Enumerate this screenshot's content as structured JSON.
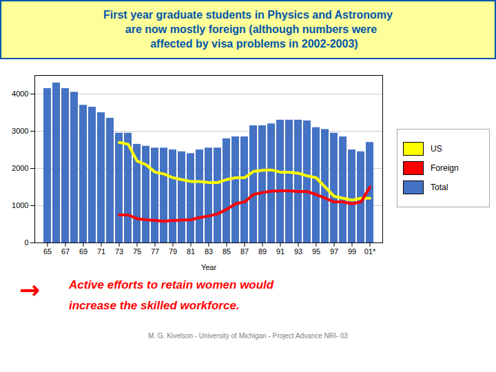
{
  "chart_data": {
    "type": "bar",
    "title": "First year graduate students in Physics and Astronomy\n  are now mostly foreign (although numbers were\n    affected by visa problems in 2002-2003)",
    "xlabel": "Year",
    "categories": [
      "65",
      null,
      "67",
      null,
      "69",
      null,
      "71",
      null,
      "73",
      null,
      "75",
      null,
      "77",
      null,
      "79",
      null,
      "81",
      null,
      "83",
      null,
      "85",
      null,
      "87",
      null,
      "89",
      null,
      "91",
      null,
      "93",
      null,
      "95",
      null,
      "97",
      null,
      "99",
      null,
      "01*"
    ],
    "series": [
      {
        "name": "US",
        "type": "line",
        "color": "#FFFF00",
        "values": [
          null,
          null,
          null,
          null,
          null,
          null,
          null,
          null,
          2700,
          2650,
          2200,
          2100,
          1900,
          1850,
          1750,
          1700,
          1650,
          1650,
          1620,
          1620,
          1700,
          1750,
          1750,
          1920,
          1950,
          1960,
          1900,
          1900,
          1870,
          1800,
          1750,
          1500,
          1250,
          1200,
          1150,
          1200,
          1200
        ]
      },
      {
        "name": "Foreign",
        "type": "line",
        "color": "#FF0000",
        "values": [
          null,
          null,
          null,
          null,
          null,
          null,
          null,
          null,
          750,
          750,
          650,
          620,
          600,
          580,
          600,
          610,
          620,
          680,
          720,
          780,
          900,
          1050,
          1100,
          1300,
          1350,
          1390,
          1400,
          1400,
          1380,
          1380,
          1300,
          1200,
          1100,
          1100,
          1050,
          1100,
          1500
        ]
      },
      {
        "name": "Total",
        "type": "bar",
        "color": "#4472C4",
        "values": [
          4150,
          4300,
          4150,
          4050,
          3700,
          3650,
          3500,
          3350,
          2950,
          2950,
          2650,
          2600,
          2550,
          2550,
          2500,
          2450,
          2400,
          2500,
          2550,
          2550,
          2800,
          2850,
          2850,
          3150,
          3150,
          3200,
          3300,
          3300,
          3300,
          3280,
          3100,
          3050,
          2950,
          2850,
          2500,
          2450,
          2700
        ]
      }
    ],
    "ylim": [
      0,
      4500
    ],
    "yticks": [
      0,
      1000,
      2000,
      3000,
      4000
    ],
    "grid": true,
    "legend": "right",
    "annotations": [
      "→",
      "Active efforts to retain women would",
      "increase the skilled workforce.",
      "M. G. Kivelson - University of Michigan - Project Advance NRI- 03"
    ]
  }
}
